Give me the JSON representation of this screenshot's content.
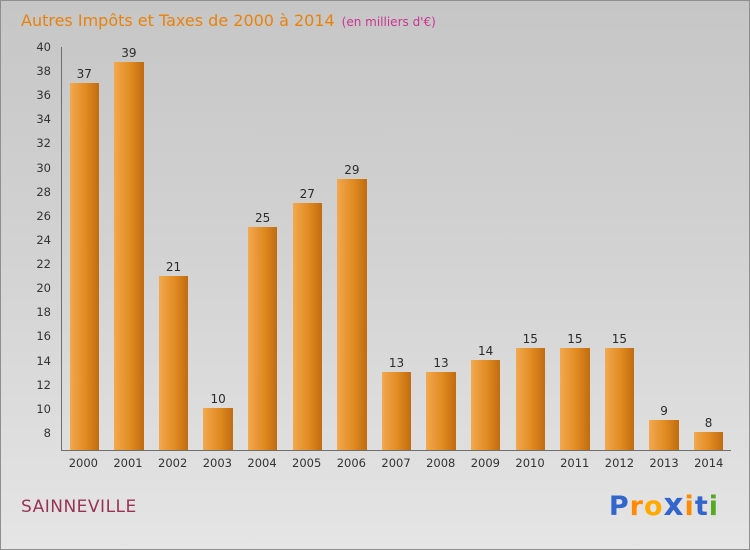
{
  "header": {
    "title": "Autres Impôts et Taxes de 2000 à 2014",
    "subtitle": "(en milliers d'€)",
    "title_color": "#e8820c",
    "subtitle_color": "#cc3393"
  },
  "chart_data": {
    "type": "bar",
    "title": "Autres Impôts et Taxes de 2000 à 2014",
    "subtitle": "(en milliers d'€)",
    "categories": [
      "2000",
      "2001",
      "2002",
      "2003",
      "2004",
      "2005",
      "2006",
      "2007",
      "2008",
      "2009",
      "2010",
      "2011",
      "2012",
      "2013",
      "2014"
    ],
    "values": [
      37,
      39,
      21,
      10,
      25,
      27,
      29,
      13,
      13,
      14,
      15,
      15,
      15,
      9,
      8
    ],
    "yticks": [
      8,
      10,
      12,
      14,
      16,
      18,
      20,
      22,
      24,
      26,
      28,
      30,
      32,
      34,
      36,
      38,
      40
    ],
    "ylim": [
      6.5,
      40
    ],
    "grid": false,
    "legend_position": "none",
    "bar_color": "#e08a1e",
    "xlabel": "",
    "ylabel": ""
  },
  "footer": {
    "commune": "SAINNEVILLE",
    "commune_color": "#993355",
    "logo_letters": [
      {
        "ch": "P",
        "color": "#3366cc"
      },
      {
        "ch": "r",
        "color": "#ff8a00"
      },
      {
        "ch": "o",
        "color": "#ffaa00"
      },
      {
        "ch": "x",
        "color": "#3366cc"
      },
      {
        "ch": "i",
        "color": "#ff8a00"
      },
      {
        "ch": "t",
        "color": "#3366cc"
      },
      {
        "ch": "i",
        "color": "#55aa22"
      }
    ]
  }
}
